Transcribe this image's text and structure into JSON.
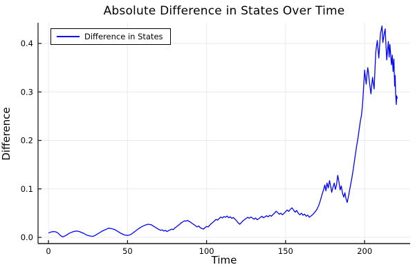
{
  "title": "Absolute Difference in States Over Time",
  "legend": {
    "label": "Difference in States"
  },
  "axes": {
    "xlabel": "Time",
    "ylabel": "Difference"
  },
  "colors": {
    "series": "#0000ff",
    "spine": "#1a1a1a",
    "grid": "#e9e9e9",
    "tick_text": "#000000",
    "background": "#ffffff"
  },
  "chart_data": {
    "type": "line",
    "title": "Absolute Difference in States Over Time",
    "xlabel": "Time",
    "ylabel": "Difference",
    "grid": true,
    "legend_position": "top-left",
    "xlim": [
      -6.6,
      228.8
    ],
    "ylim": [
      -0.0128,
      0.4427
    ],
    "x_ticks": [
      0,
      50,
      100,
      150,
      200
    ],
    "x_tick_labels": [
      "0",
      "50",
      "100",
      "150",
      "200"
    ],
    "y_ticks": [
      0.0,
      0.1,
      0.2,
      0.3,
      0.4
    ],
    "y_tick_labels": [
      "0.0",
      "0.1",
      "0.2",
      "0.3",
      "0.4"
    ],
    "series": [
      {
        "name": "Difference in States",
        "color": "#0000ff",
        "points": [
          [
            0,
            0.009
          ],
          [
            1.5,
            0.011
          ],
          [
            3,
            0.012
          ],
          [
            4.5,
            0.0115
          ],
          [
            6,
            0.009
          ],
          [
            7.5,
            0.004
          ],
          [
            9,
            0.001
          ],
          [
            10.5,
            0.003
          ],
          [
            12,
            0.006
          ],
          [
            13.5,
            0.009
          ],
          [
            15,
            0.011
          ],
          [
            16.5,
            0.0125
          ],
          [
            18,
            0.013
          ],
          [
            19.5,
            0.012
          ],
          [
            21,
            0.01
          ],
          [
            22.5,
            0.008
          ],
          [
            24,
            0.005
          ],
          [
            26,
            0.003
          ],
          [
            28,
            0.002
          ],
          [
            29.5,
            0.004
          ],
          [
            31,
            0.007
          ],
          [
            32.5,
            0.01
          ],
          [
            34,
            0.013
          ],
          [
            36,
            0.016
          ],
          [
            38,
            0.019
          ],
          [
            40,
            0.018
          ],
          [
            42,
            0.016
          ],
          [
            44,
            0.012
          ],
          [
            46,
            0.008
          ],
          [
            48,
            0.005
          ],
          [
            50,
            0.004
          ],
          [
            51.5,
            0.005
          ],
          [
            53,
            0.008
          ],
          [
            55,
            0.013
          ],
          [
            57,
            0.018
          ],
          [
            59,
            0.022
          ],
          [
            61,
            0.025
          ],
          [
            63,
            0.027
          ],
          [
            65,
            0.026
          ],
          [
            67,
            0.022
          ],
          [
            69,
            0.018
          ],
          [
            70,
            0.016
          ],
          [
            71,
            0.0145
          ],
          [
            72,
            0.0155
          ],
          [
            73,
            0.013
          ],
          [
            74,
            0.0145
          ],
          [
            75,
            0.012
          ],
          [
            76,
            0.014
          ],
          [
            77,
            0.0155
          ],
          [
            78,
            0.017
          ],
          [
            79,
            0.016
          ],
          [
            80,
            0.0195
          ],
          [
            81,
            0.022
          ],
          [
            82,
            0.0245
          ],
          [
            83,
            0.027
          ],
          [
            84,
            0.03
          ],
          [
            85,
            0.032
          ],
          [
            86,
            0.034
          ],
          [
            87,
            0.0335
          ],
          [
            88,
            0.035
          ],
          [
            89,
            0.033
          ],
          [
            90,
            0.031
          ],
          [
            91,
            0.0285
          ],
          [
            92,
            0.0265
          ],
          [
            93,
            0.024
          ],
          [
            94,
            0.0215
          ],
          [
            95,
            0.0235
          ],
          [
            96,
            0.02
          ],
          [
            97,
            0.0185
          ],
          [
            98,
            0.017
          ],
          [
            99,
            0.02
          ],
          [
            100,
            0.0225
          ],
          [
            101,
            0.0215
          ],
          [
            102,
            0.025
          ],
          [
            103,
            0.0285
          ],
          [
            104,
            0.031
          ],
          [
            105,
            0.034
          ],
          [
            106,
            0.037
          ],
          [
            107,
            0.0355
          ],
          [
            108,
            0.039
          ],
          [
            109,
            0.042
          ],
          [
            110,
            0.04
          ],
          [
            111,
            0.043
          ],
          [
            112,
            0.0415
          ],
          [
            113,
            0.044
          ],
          [
            114,
            0.0405
          ],
          [
            115,
            0.0425
          ],
          [
            116,
            0.039
          ],
          [
            117,
            0.041
          ],
          [
            118,
            0.0375
          ],
          [
            119,
            0.034
          ],
          [
            120,
            0.03
          ],
          [
            121,
            0.027
          ],
          [
            122,
            0.0305
          ],
          [
            123,
            0.034
          ],
          [
            124,
            0.0365
          ],
          [
            125,
            0.039
          ],
          [
            126,
            0.0415
          ],
          [
            127,
            0.0395
          ],
          [
            128,
            0.042
          ],
          [
            129,
            0.04
          ],
          [
            130,
            0.0375
          ],
          [
            131,
            0.04
          ],
          [
            132,
            0.0365
          ],
          [
            133,
            0.0385
          ],
          [
            134,
            0.041
          ],
          [
            135,
            0.0435
          ],
          [
            136,
            0.0405
          ],
          [
            137,
            0.0425
          ],
          [
            138,
            0.0445
          ],
          [
            139,
            0.0425
          ],
          [
            140,
            0.0455
          ],
          [
            141,
            0.0435
          ],
          [
            142,
            0.047
          ],
          [
            143,
            0.05
          ],
          [
            144,
            0.054
          ],
          [
            145,
            0.051
          ],
          [
            146,
            0.0475
          ],
          [
            147,
            0.05
          ],
          [
            148,
            0.0465
          ],
          [
            149,
            0.0495
          ],
          [
            150,
            0.053
          ],
          [
            151,
            0.0565
          ],
          [
            152,
            0.0535
          ],
          [
            153,
            0.058
          ],
          [
            154,
            0.061
          ],
          [
            155,
            0.0565
          ],
          [
            156,
            0.052
          ],
          [
            157,
            0.0555
          ],
          [
            158,
            0.05
          ],
          [
            159,
            0.0465
          ],
          [
            160,
            0.05
          ],
          [
            161,
            0.0455
          ],
          [
            162,
            0.048
          ],
          [
            163,
            0.0435
          ],
          [
            164,
            0.046
          ],
          [
            165,
            0.0415
          ],
          [
            166,
            0.044
          ],
          [
            167,
            0.0465
          ],
          [
            168,
            0.05
          ],
          [
            169,
            0.054
          ],
          [
            170,
            0.059
          ],
          [
            171,
            0.066
          ],
          [
            172,
            0.076
          ],
          [
            173,
            0.088
          ],
          [
            174,
            0.098
          ],
          [
            174.8,
            0.108
          ],
          [
            175.5,
            0.096
          ],
          [
            176.2,
            0.112
          ],
          [
            177,
            0.102
          ],
          [
            177.8,
            0.117
          ],
          [
            178.5,
            0.106
          ],
          [
            179.2,
            0.093
          ],
          [
            180,
            0.104
          ],
          [
            180.8,
            0.112
          ],
          [
            181.5,
            0.099
          ],
          [
            182.2,
            0.108
          ],
          [
            183,
            0.128
          ],
          [
            183.8,
            0.113
          ],
          [
            184.5,
            0.098
          ],
          [
            185.2,
            0.106
          ],
          [
            186,
            0.091
          ],
          [
            186.8,
            0.083
          ],
          [
            187.5,
            0.092
          ],
          [
            188.2,
            0.08
          ],
          [
            189,
            0.072
          ],
          [
            189.8,
            0.085
          ],
          [
            190.5,
            0.098
          ],
          [
            191.2,
            0.11
          ],
          [
            192,
            0.124
          ],
          [
            192.8,
            0.14
          ],
          [
            193.5,
            0.156
          ],
          [
            194.2,
            0.172
          ],
          [
            195,
            0.19
          ],
          [
            195.8,
            0.205
          ],
          [
            196.5,
            0.222
          ],
          [
            197.2,
            0.238
          ],
          [
            198,
            0.252
          ],
          [
            198.5,
            0.268
          ],
          [
            199,
            0.29
          ],
          [
            199.5,
            0.318
          ],
          [
            200,
            0.345
          ],
          [
            200.5,
            0.33
          ],
          [
            201,
            0.316
          ],
          [
            201.5,
            0.336
          ],
          [
            202,
            0.35
          ],
          [
            202.5,
            0.338
          ],
          [
            203,
            0.322
          ],
          [
            203.5,
            0.308
          ],
          [
            204,
            0.296
          ],
          [
            204.5,
            0.315
          ],
          [
            205,
            0.33
          ],
          [
            205.5,
            0.318
          ],
          [
            206,
            0.306
          ],
          [
            206.5,
            0.342
          ],
          [
            207,
            0.38
          ],
          [
            207.5,
            0.394
          ],
          [
            208,
            0.406
          ],
          [
            208.5,
            0.388
          ],
          [
            209,
            0.37
          ],
          [
            209.5,
            0.396
          ],
          [
            210,
            0.42
          ],
          [
            210.5,
            0.428
          ],
          [
            211,
            0.436
          ],
          [
            211.5,
            0.402
          ],
          [
            212,
            0.412
          ],
          [
            212.5,
            0.422
          ],
          [
            213,
            0.43
          ],
          [
            213.5,
            0.396
          ],
          [
            214,
            0.366
          ],
          [
            214.5,
            0.386
          ],
          [
            215,
            0.404
          ],
          [
            215.5,
            0.372
          ],
          [
            216,
            0.398
          ],
          [
            216.5,
            0.376
          ],
          [
            217,
            0.356
          ],
          [
            217.5,
            0.376
          ],
          [
            218,
            0.342
          ],
          [
            218.5,
            0.368
          ],
          [
            219,
            0.312
          ],
          [
            219.3,
            0.334
          ],
          [
            219.6,
            0.296
          ],
          [
            220,
            0.274
          ],
          [
            220.3,
            0.292
          ],
          [
            220.6,
            0.286
          ]
        ]
      }
    ]
  }
}
